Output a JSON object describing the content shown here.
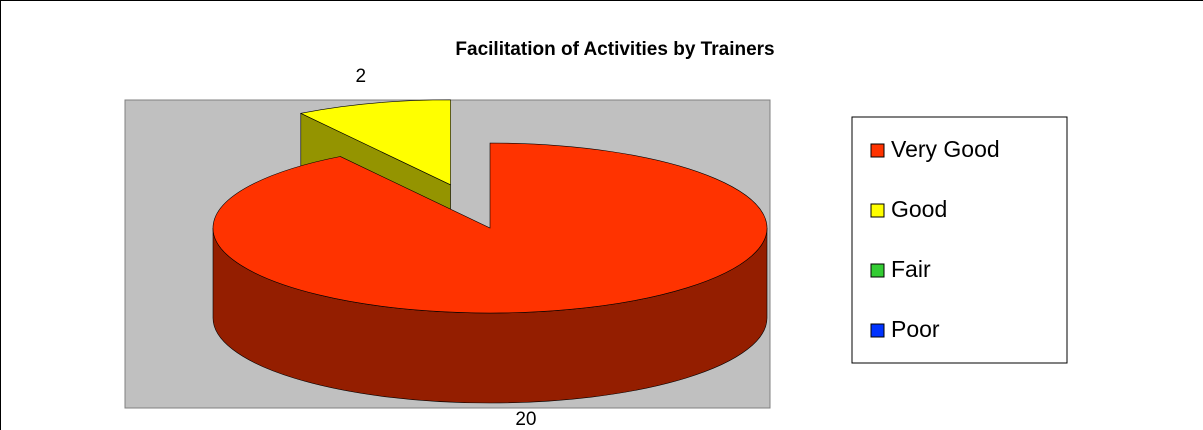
{
  "chart_data": {
    "type": "pie3d",
    "title": "Facilitation of Activities by Trainers",
    "categories": [
      "Very Good",
      "Good",
      "Fair",
      "Poor"
    ],
    "values": [
      20,
      2,
      0,
      0
    ],
    "colors": [
      "#ff3300",
      "#ffff00",
      "#33cc33",
      "#0033ff"
    ],
    "legend": "right"
  }
}
